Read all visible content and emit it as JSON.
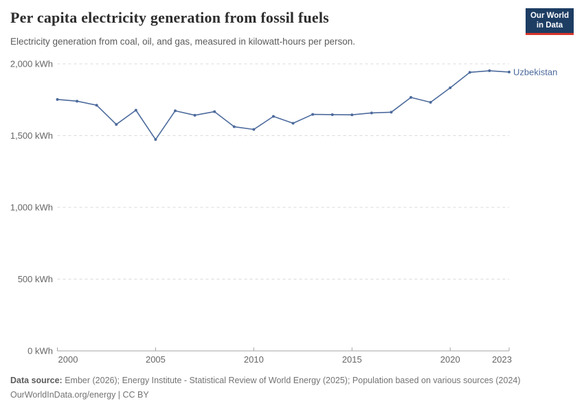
{
  "header": {
    "title": "Per capita electricity generation from fossil fuels",
    "subtitle": "Electricity generation from coal, oil, and gas, measured in kilowatt-hours per person.",
    "logo": {
      "line1": "Our World",
      "line2": "in Data",
      "background_color": "#1d3d63",
      "accent_color": "#d8352a"
    }
  },
  "chart_data": {
    "type": "line",
    "title": "Per capita electricity generation from fossil fuels",
    "xlabel": "",
    "ylabel": "kWh per person",
    "xlim": [
      2000,
      2023
    ],
    "ylim": [
      0,
      2000
    ],
    "grid": "horizontal dashed",
    "legend_position": "end-of-line label",
    "x_ticks": [
      2000,
      2005,
      2010,
      2015,
      2020,
      2023
    ],
    "y_ticks": [
      0,
      500,
      1000,
      1500,
      2000
    ],
    "y_tick_labels": [
      "0 kWh",
      "500 kWh",
      "1,000 kWh",
      "1,500 kWh",
      "2,000 kWh"
    ],
    "series": [
      {
        "name": "Uzbekistan",
        "color": "#4c6a9c",
        "x": [
          2000,
          2001,
          2002,
          2003,
          2004,
          2005,
          2006,
          2007,
          2008,
          2009,
          2010,
          2011,
          2012,
          2013,
          2014,
          2015,
          2016,
          2017,
          2018,
          2019,
          2020,
          2021,
          2022,
          2023
        ],
        "values": [
          1752,
          1740,
          1712,
          1578,
          1677,
          1473,
          1673,
          1642,
          1667,
          1562,
          1543,
          1634,
          1586,
          1648,
          1646,
          1645,
          1658,
          1663,
          1766,
          1732,
          1833,
          1941,
          1952,
          1943
        ]
      }
    ]
  },
  "footer": {
    "data_source_label": "Data source:",
    "data_source_text": "Ember (2026); Energy Institute - Statistical Review of World Energy (2025); Population based on various sources (2024)",
    "link_line": "OurWorldInData.org/energy | CC BY"
  }
}
